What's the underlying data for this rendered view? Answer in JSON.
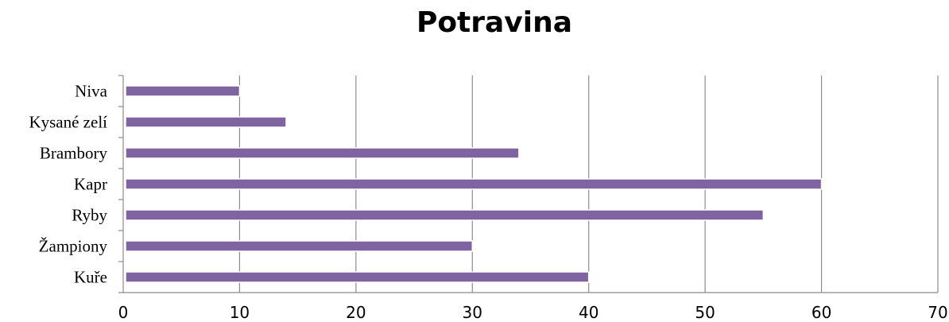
{
  "chart_data": {
    "type": "bar",
    "orientation": "horizontal",
    "title": "Potravina",
    "categories": [
      "Niva",
      "Kysané zelí",
      "Brambory",
      "Kapr",
      "Ryby",
      "Žampiony",
      "Kuře"
    ],
    "values": [
      10,
      14,
      34,
      60,
      55,
      30,
      40
    ],
    "xlim": [
      0,
      70
    ],
    "xticks": [
      0,
      10,
      20,
      30,
      40,
      50,
      60,
      70
    ],
    "grid": "vertical",
    "bar_color": "#8064A2"
  }
}
